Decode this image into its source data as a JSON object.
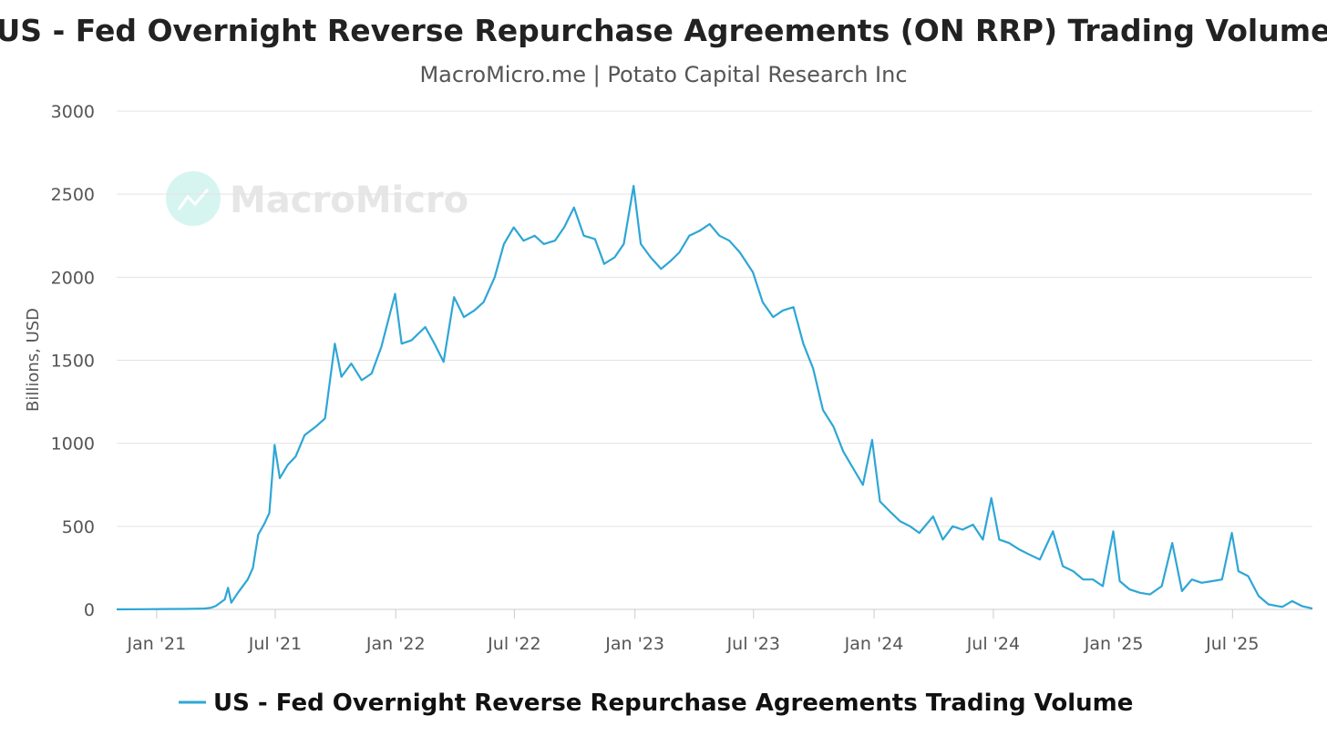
{
  "colors": {
    "series": "#2ea6d6",
    "background": "#ffffff",
    "grid": "#e3e3e3",
    "watermark": "#d6f5f0"
  },
  "watermark": {
    "text": "MacroMicro",
    "icon": "macromicro-logo-icon"
  },
  "chart_data": {
    "type": "line",
    "title": "US - Fed Overnight Reverse Repurchase Agreements (ON RRP) Trading Volume",
    "subtitle": "MacroMicro.me | Potato Capital Research Inc",
    "ylabel": "Billions, USD",
    "xlabel": "",
    "ylim": [
      0,
      3000
    ],
    "xlim": [
      "2020-11-01",
      "2025-10-31"
    ],
    "y_ticks": [
      0,
      500,
      1000,
      1500,
      2000,
      2500,
      3000
    ],
    "x_ticks": [
      {
        "date": "2021-01-01",
        "label": "Jan '21"
      },
      {
        "date": "2021-07-01",
        "label": "Jul '21"
      },
      {
        "date": "2022-01-01",
        "label": "Jan '22"
      },
      {
        "date": "2022-07-01",
        "label": "Jul '22"
      },
      {
        "date": "2023-01-01",
        "label": "Jan '23"
      },
      {
        "date": "2023-07-01",
        "label": "Jul '23"
      },
      {
        "date": "2024-01-01",
        "label": "Jan '24"
      },
      {
        "date": "2024-07-01",
        "label": "Jul '24"
      },
      {
        "date": "2025-01-01",
        "label": "Jan '25"
      },
      {
        "date": "2025-07-01",
        "label": "Jul '25"
      }
    ],
    "grid": true,
    "legend_position": "bottom-center",
    "series": [
      {
        "name": "US - Fed Overnight Reverse Repurchase Agreements Trading Volume",
        "color": "#2ea6d6",
        "points": [
          [
            "2020-11-01",
            0
          ],
          [
            "2020-12-15",
            1
          ],
          [
            "2021-01-15",
            2
          ],
          [
            "2021-02-15",
            3
          ],
          [
            "2021-03-15",
            5
          ],
          [
            "2021-03-25",
            10
          ],
          [
            "2021-04-01",
            20
          ],
          [
            "2021-04-15",
            60
          ],
          [
            "2021-04-20",
            130
          ],
          [
            "2021-04-25",
            40
          ],
          [
            "2021-05-05",
            100
          ],
          [
            "2021-05-20",
            180
          ],
          [
            "2021-05-28",
            250
          ],
          [
            "2021-06-05",
            450
          ],
          [
            "2021-06-15",
            520
          ],
          [
            "2021-06-22",
            580
          ],
          [
            "2021-06-30",
            990
          ],
          [
            "2021-07-08",
            790
          ],
          [
            "2021-07-20",
            870
          ],
          [
            "2021-08-01",
            920
          ],
          [
            "2021-08-15",
            1050
          ],
          [
            "2021-09-01",
            1100
          ],
          [
            "2021-09-15",
            1150
          ],
          [
            "2021-09-30",
            1600
          ],
          [
            "2021-10-10",
            1400
          ],
          [
            "2021-10-25",
            1480
          ],
          [
            "2021-11-10",
            1380
          ],
          [
            "2021-11-25",
            1420
          ],
          [
            "2021-12-10",
            1580
          ],
          [
            "2021-12-31",
            1900
          ],
          [
            "2022-01-10",
            1600
          ],
          [
            "2022-01-25",
            1620
          ],
          [
            "2022-02-15",
            1700
          ],
          [
            "2022-03-01",
            1600
          ],
          [
            "2022-03-15",
            1490
          ],
          [
            "2022-03-31",
            1880
          ],
          [
            "2022-04-15",
            1760
          ],
          [
            "2022-05-01",
            1800
          ],
          [
            "2022-05-15",
            1850
          ],
          [
            "2022-06-01",
            2000
          ],
          [
            "2022-06-15",
            2200
          ],
          [
            "2022-06-30",
            2300
          ],
          [
            "2022-07-15",
            2220
          ],
          [
            "2022-08-01",
            2250
          ],
          [
            "2022-08-15",
            2200
          ],
          [
            "2022-09-01",
            2220
          ],
          [
            "2022-09-15",
            2300
          ],
          [
            "2022-09-30",
            2420
          ],
          [
            "2022-10-15",
            2250
          ],
          [
            "2022-11-01",
            2230
          ],
          [
            "2022-11-15",
            2080
          ],
          [
            "2022-12-01",
            2120
          ],
          [
            "2022-12-15",
            2200
          ],
          [
            "2022-12-30",
            2550
          ],
          [
            "2023-01-10",
            2200
          ],
          [
            "2023-01-25",
            2120
          ],
          [
            "2023-02-10",
            2050
          ],
          [
            "2023-02-25",
            2100
          ],
          [
            "2023-03-10",
            2150
          ],
          [
            "2023-03-25",
            2250
          ],
          [
            "2023-04-10",
            2280
          ],
          [
            "2023-04-25",
            2320
          ],
          [
            "2023-05-10",
            2250
          ],
          [
            "2023-05-25",
            2220
          ],
          [
            "2023-06-10",
            2150
          ],
          [
            "2023-06-30",
            2030
          ],
          [
            "2023-07-15",
            1850
          ],
          [
            "2023-07-31",
            1760
          ],
          [
            "2023-08-15",
            1800
          ],
          [
            "2023-08-31",
            1820
          ],
          [
            "2023-09-15",
            1600
          ],
          [
            "2023-09-30",
            1450
          ],
          [
            "2023-10-15",
            1200
          ],
          [
            "2023-10-31",
            1100
          ],
          [
            "2023-11-15",
            950
          ],
          [
            "2023-11-30",
            850
          ],
          [
            "2023-12-15",
            750
          ],
          [
            "2023-12-29",
            1020
          ],
          [
            "2024-01-10",
            650
          ],
          [
            "2024-01-25",
            590
          ],
          [
            "2024-02-10",
            530
          ],
          [
            "2024-02-25",
            500
          ],
          [
            "2024-03-10",
            460
          ],
          [
            "2024-03-31",
            560
          ],
          [
            "2024-04-15",
            420
          ],
          [
            "2024-04-30",
            500
          ],
          [
            "2024-05-15",
            480
          ],
          [
            "2024-05-31",
            510
          ],
          [
            "2024-06-15",
            420
          ],
          [
            "2024-06-28",
            670
          ],
          [
            "2024-07-10",
            420
          ],
          [
            "2024-07-25",
            400
          ],
          [
            "2024-08-10",
            360
          ],
          [
            "2024-08-25",
            330
          ],
          [
            "2024-09-10",
            300
          ],
          [
            "2024-09-30",
            470
          ],
          [
            "2024-10-15",
            260
          ],
          [
            "2024-10-31",
            230
          ],
          [
            "2024-11-15",
            180
          ],
          [
            "2024-11-30",
            180
          ],
          [
            "2024-12-15",
            140
          ],
          [
            "2024-12-31",
            470
          ],
          [
            "2025-01-10",
            170
          ],
          [
            "2025-01-25",
            120
          ],
          [
            "2025-02-10",
            100
          ],
          [
            "2025-02-25",
            90
          ],
          [
            "2025-03-15",
            140
          ],
          [
            "2025-03-31",
            400
          ],
          [
            "2025-04-15",
            110
          ],
          [
            "2025-04-30",
            180
          ],
          [
            "2025-05-15",
            160
          ],
          [
            "2025-05-31",
            170
          ],
          [
            "2025-06-15",
            180
          ],
          [
            "2025-06-30",
            460
          ],
          [
            "2025-07-10",
            230
          ],
          [
            "2025-07-25",
            200
          ],
          [
            "2025-08-10",
            80
          ],
          [
            "2025-08-25",
            30
          ],
          [
            "2025-09-15",
            15
          ],
          [
            "2025-09-30",
            50
          ],
          [
            "2025-10-15",
            20
          ],
          [
            "2025-10-31",
            5
          ]
        ]
      }
    ]
  }
}
